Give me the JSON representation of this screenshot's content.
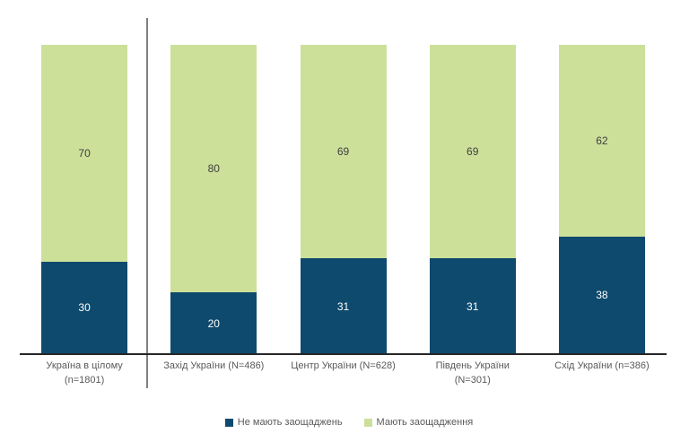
{
  "chart_data": {
    "type": "bar",
    "stacked": true,
    "orientation": "vertical",
    "categories": [
      "Україна в цілому (n=1801)",
      "Захід України (N=486)",
      "Центр України (N=628)",
      "Південь України (N=301)",
      "Схід України (n=386)"
    ],
    "series": [
      {
        "name": "Не мають заощаджень",
        "color": "#0e4a6d",
        "values": [
          30,
          20,
          31,
          31,
          38
        ]
      },
      {
        "name": "Мають заощадження",
        "color": "#cce09a",
        "values": [
          70,
          80,
          69,
          69,
          62
        ]
      }
    ],
    "ylim": [
      0,
      100
    ],
    "units": "percent",
    "grid": false,
    "axes_visible": false,
    "legend_position": "bottom-center",
    "value_labels": "inside-center",
    "separator_line_after_category_index": 0
  },
  "category_label_lines": [
    [
      "Україна в цілому",
      "(n=1801)"
    ],
    [
      "Захід України (N=486)"
    ],
    [
      "Центр України (N=628)"
    ],
    [
      "Південь України",
      "(N=301)"
    ],
    [
      "Схід України (n=386)"
    ]
  ],
  "styles": {
    "background": "#ffffff",
    "value_label_color_on_green": "#404040",
    "value_label_color_on_blue": "#ffffff",
    "category_label_color": "#595959",
    "legend_text_color": "#595959",
    "separator_line_color": "#7f7f7f",
    "baseline_color": "#262626"
  }
}
